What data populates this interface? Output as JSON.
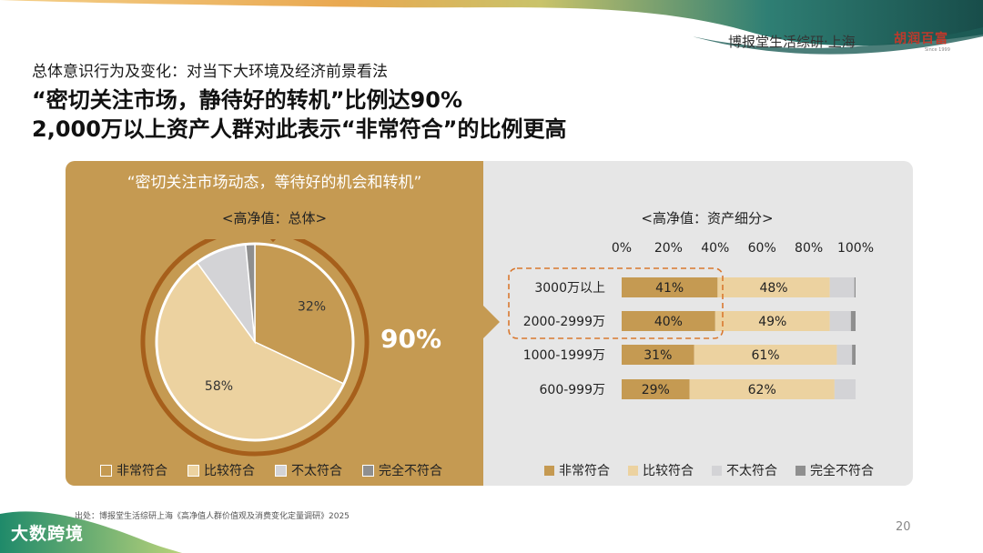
{
  "header": {
    "brand": "博报堂生活综研·上海",
    "logo": "胡润百富",
    "logo_sub": "Since 1999"
  },
  "slide": {
    "subtitle": "总体意识行为及变化：对当下大环境及经济前景看法",
    "headline_1": "“密切关注市场，静待好的转机”比例达90%",
    "headline_2": "2,000万以上资产人群对此表示“非常符合”的比例更高"
  },
  "left_panel": {
    "title": "“密切关注市场动态，等待好的机会和转机”",
    "subtitle": "<高净值：总体>",
    "highlight": "90%"
  },
  "right_panel": {
    "subtitle": "<高净值：资产细分>"
  },
  "legend": [
    "非常符合",
    "比较符合",
    "不太符合",
    "完全不符合"
  ],
  "colors": {
    "very": "#c59a52",
    "fairly": "#ecd2a0",
    "not_very": "#d3d3d6",
    "not_at_all": "#8f8f8f",
    "panel_left": "#c59a52",
    "panel_right": "#e6e6e6",
    "arc": "#a65f1b",
    "highlight_box": "#d9782f"
  },
  "chart_data": [
    {
      "type": "pie",
      "title": "<高净值：总体>",
      "labels": [
        "非常符合",
        "比较符合",
        "不太符合",
        "完全不符合"
      ],
      "values": [
        32,
        58,
        8.5,
        1.5
      ],
      "data_labels": [
        "32%",
        "58%",
        "",
        ""
      ]
    },
    {
      "type": "bar",
      "orientation": "horizontal-stacked",
      "title": "<高净值：资产细分>",
      "categories": [
        "3000万以上",
        "2000-2999万",
        "1000-1999万",
        "600-999万"
      ],
      "xlim": [
        0,
        100
      ],
      "x_ticks": [
        "0%",
        "20%",
        "40%",
        "60%",
        "80%",
        "100%"
      ],
      "series": [
        {
          "name": "非常符合",
          "values": [
            41,
            40,
            31,
            29
          ]
        },
        {
          "name": "比较符合",
          "values": [
            48,
            49,
            61,
            62
          ]
        },
        {
          "name": "不太符合",
          "values": [
            10.5,
            9,
            6.5,
            9
          ]
        },
        {
          "name": "完全不符合",
          "values": [
            0.5,
            2,
            1.5,
            0
          ]
        }
      ],
      "data_labels": [
        [
          "41%",
          "48%"
        ],
        [
          "40%",
          "49%"
        ],
        [
          "31%",
          "61%"
        ],
        [
          "29%",
          "62%"
        ]
      ],
      "highlighted_categories": [
        "3000万以上",
        "2000-2999万"
      ]
    }
  ],
  "footer": {
    "source": "出处：博报堂生活综研上海《高净值人群价值观及消费变化定量调研》2025",
    "page": "20",
    "watermark": "大数跨境"
  }
}
